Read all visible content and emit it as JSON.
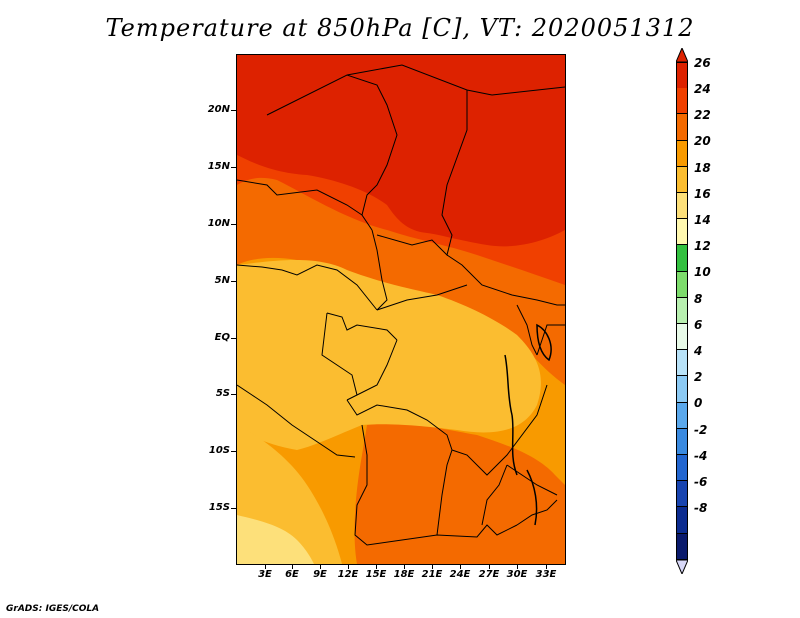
{
  "title": "Temperature at 850hPa [C], VT: 2020051312",
  "credit": "GrADS: IGES/COLA",
  "lat_labels": [
    "20N",
    "15N",
    "10N",
    "5N",
    "EQ",
    "5S",
    "10S",
    "15S"
  ],
  "lon_labels": [
    "3E",
    "6E",
    "9E",
    "12E",
    "15E",
    "18E",
    "21E",
    "24E",
    "27E",
    "30E",
    "33E"
  ],
  "colorbar": {
    "labels": [
      "26",
      "24",
      "22",
      "20",
      "18",
      "16",
      "14",
      "12",
      "10",
      "8",
      "6",
      "4",
      "2",
      "0",
      "-2",
      "-4",
      "-6",
      "-8"
    ],
    "colors": [
      "#dd2200",
      "#f04000",
      "#f46a00",
      "#f89a00",
      "#fbbd30",
      "#fde07a",
      "#fff8b0",
      "#33c040",
      "#7ddc6c",
      "#b8f0b0",
      "#e8fae8",
      "#b8e2f8",
      "#8ccaf4",
      "#5aa8ec",
      "#3a8ae0",
      "#2266d0",
      "#1844b0",
      "#0c2c90",
      "#0a1a6c"
    ]
  },
  "colors": {
    "hot": "#dd2200",
    "c24": "#f04000",
    "c22": "#f46a00",
    "c20": "#f89a00",
    "c18": "#fbbd30",
    "c16": "#fde07a",
    "border": "#000000"
  }
}
